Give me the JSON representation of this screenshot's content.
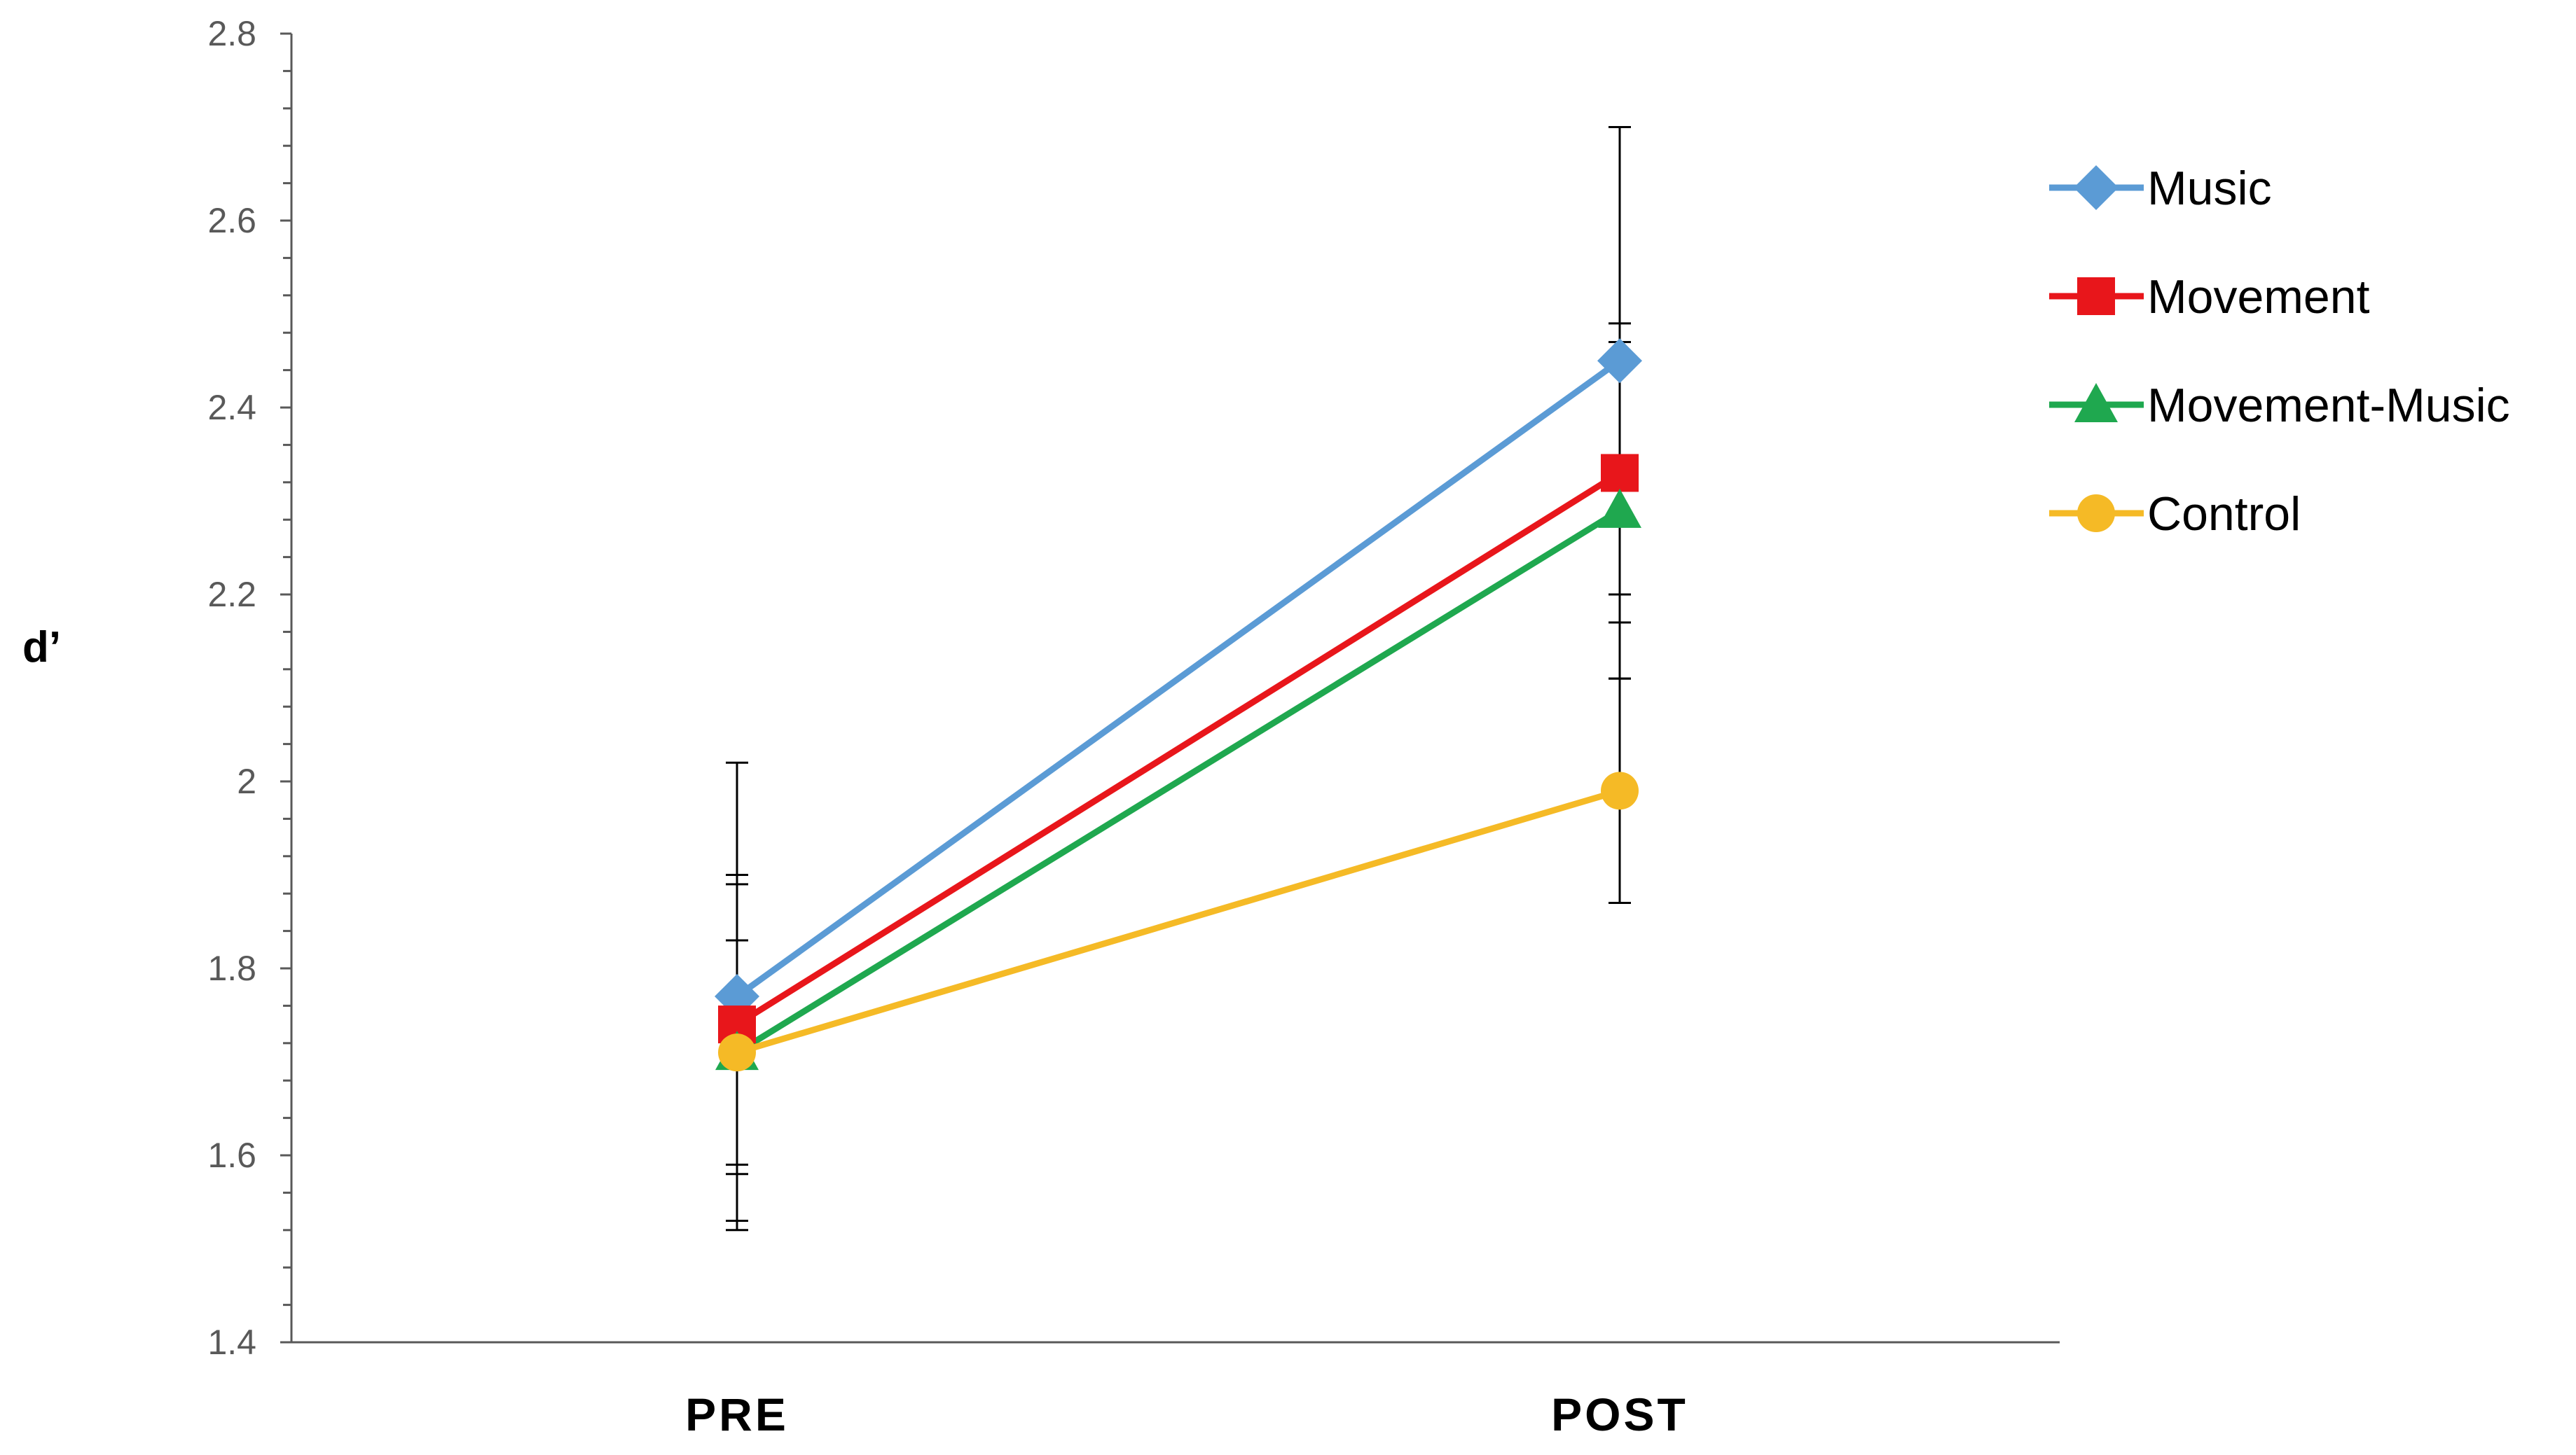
{
  "chart_data": {
    "type": "line",
    "title": "",
    "xlabel": "",
    "ylabel": "d’",
    "categories": [
      "PRE",
      "POST"
    ],
    "ylim": [
      1.4,
      2.8
    ],
    "yticks": [
      1.4,
      1.6,
      1.8,
      2,
      2.2,
      2.4,
      2.6,
      2.8
    ],
    "ytick_labels": [
      "1.4",
      "1.6",
      "1.8",
      "2",
      "2.2",
      "2.4",
      "2.6",
      "2.8"
    ],
    "grid": false,
    "legend_position": "top-right",
    "series": [
      {
        "name": "Music",
        "values": [
          1.77,
          2.45
        ],
        "error": [
          0.25,
          0.25
        ],
        "color": "#5B9BD5",
        "marker": "diamond"
      },
      {
        "name": "Movement",
        "values": [
          1.74,
          2.33
        ],
        "error": [
          0.16,
          0.16
        ],
        "color": "#E8161B",
        "marker": "square"
      },
      {
        "name": "Movement-Music",
        "values": [
          1.71,
          2.29
        ],
        "error": [
          0.18,
          0.18
        ],
        "color": "#1FA84F",
        "marker": "triangle"
      },
      {
        "name": "Control",
        "values": [
          1.71,
          1.99
        ],
        "error": [
          0.12,
          0.12
        ],
        "color": "#F5BA26",
        "marker": "circle"
      }
    ]
  }
}
